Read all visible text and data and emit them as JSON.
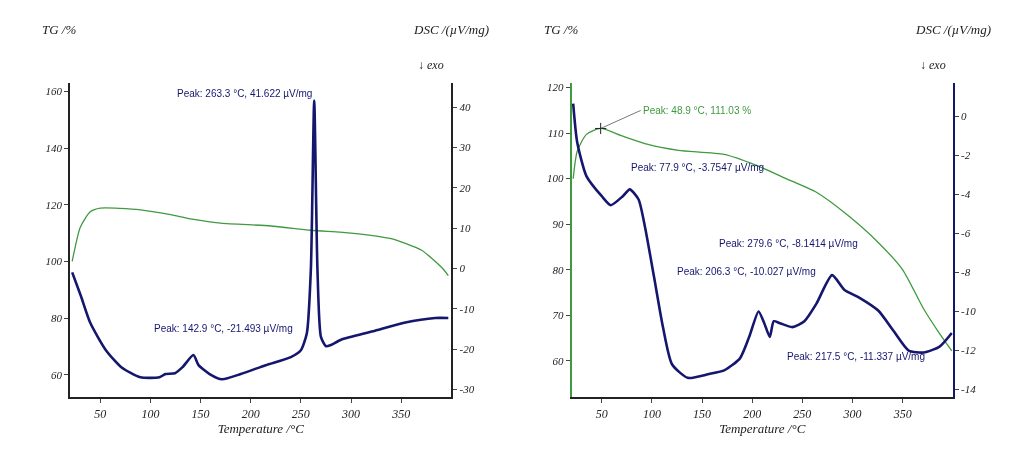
{
  "chart_data": [
    {
      "type": "line",
      "xlabel": "Temperature /°C",
      "ylabel": "TG /%",
      "y2label": "DSC /(µV/mg)",
      "xlim": [
        20,
        400
      ],
      "xticks": [
        50,
        100,
        150,
        200,
        250,
        300,
        350
      ],
      "ylim": [
        52,
        163
      ],
      "yticks": [
        60,
        80,
        100,
        120,
        140,
        160
      ],
      "y2lim": [
        -32,
        46
      ],
      "y2ticks": [
        -30,
        -20,
        -10,
        0,
        10,
        20,
        30,
        40
      ],
      "grid": false,
      "marker": "none",
      "line_style": "solid",
      "series": [
        {
          "color": "#3f9a3f",
          "x": [
            22,
            30,
            40,
            50,
            90,
            120,
            140,
            170,
            220,
            260,
            300,
            340,
            370,
            390,
            397
          ],
          "values": [
            100,
            112,
            117.5,
            118.8,
            118.2,
            116.5,
            115,
            113.5,
            112.5,
            111,
            110,
            108,
            104,
            98,
            95
          ]
        },
        {
          "color": "#15166e",
          "axis": "y2",
          "x": [
            22,
            30.6,
            40,
            55.6,
            71,
            90,
            109,
            115,
            124.5,
            132,
            142.9,
            148,
            159,
            171.5,
            190,
            215,
            240,
            250,
            256,
            260,
            263.3,
            266.5,
            270,
            275,
            280,
            290,
            322,
            353,
            384,
            397
          ],
          "values": [
            -1,
            -6.8,
            -13.5,
            -20.3,
            -24.5,
            -27,
            -27,
            -26.2,
            -26,
            -24.5,
            -21.5,
            -24,
            -26.2,
            -27.5,
            -26.2,
            -24,
            -22,
            -20.3,
            -16,
            0,
            41.6,
            0,
            -17,
            -19.3,
            -19,
            -17.7,
            -15.6,
            -13.5,
            -12.3,
            -12.3
          ]
        }
      ],
      "annotations": [
        "Peak: 263.3 °C, 41.622 µV/mg",
        "Peak: 142.9 °C, -21.493 µV/mg",
        "↓ exo"
      ]
    },
    {
      "type": "line",
      "xlabel": "Temperature /°C",
      "ylabel": "TG /%",
      "y2label": "DSC /(µV/mg)",
      "xlim": [
        20,
        400
      ],
      "xticks": [
        50,
        100,
        150,
        200,
        250,
        300,
        350
      ],
      "ylim": [
        52,
        121
      ],
      "yticks": [
        60,
        70,
        80,
        90,
        100,
        110,
        120
      ],
      "y2lim": [
        -14.4,
        1.7
      ],
      "y2ticks": [
        -14,
        -12,
        -10,
        -8,
        -6,
        -4,
        -2,
        0
      ],
      "grid": false,
      "marker": "none",
      "line_style": "solid",
      "series": [
        {
          "color": "#3f9a3f",
          "x": [
            21.5,
            25.5,
            34.7,
            48.9,
            71,
            96,
            126.5,
            172,
            203,
            233.7,
            264,
            295,
            325.6,
            350,
            371,
            386.8,
            399
          ],
          "values": [
            100,
            106,
            109.7,
            111.0,
            109.3,
            107.5,
            106.2,
            105.3,
            103,
            100,
            97,
            92,
            86,
            80,
            71.4,
            66,
            62.2
          ]
        },
        {
          "color": "#15166e",
          "axis": "y2",
          "x": [
            21.5,
            25.5,
            34.7,
            50,
            59,
            71,
            77.9,
            86.7,
            93,
            102,
            111,
            120,
            135.7,
            157,
            172.5,
            187.8,
            197,
            206.3,
            212,
            217.5,
            221.5,
            227.6,
            240,
            252,
            264,
            279.6,
            292,
            307,
            325.6,
            341,
            356,
            371,
            386.8,
            399
          ],
          "values": [
            0.64,
            -1.34,
            -3.07,
            -4.1,
            -4.56,
            -4.1,
            -3.75,
            -4.27,
            -5.65,
            -8.2,
            -10.8,
            -12.7,
            -13.4,
            -13.2,
            -13,
            -12.4,
            -11.3,
            -10.0,
            -10.6,
            -11.3,
            -10.5,
            -10.6,
            -10.8,
            -10.5,
            -9.6,
            -8.14,
            -8.9,
            -9.3,
            -9.95,
            -11,
            -12,
            -12.1,
            -11.8,
            -11.1
          ]
        }
      ],
      "annotations": [
        {
          "text": "Peak: 48.9 °C, 111.03 %",
          "x": 48.9,
          "y": 111.0
        },
        "Peak: 77.9 °C, -3.7547 µV/mg",
        "Peak: 279.6 °C, -8.1414 µV/mg",
        "Peak: 206.3 °C, -10.027 µV/mg",
        "Peak: 217.5 °C, -11.337 µV/mg",
        "↓ exo"
      ]
    }
  ]
}
